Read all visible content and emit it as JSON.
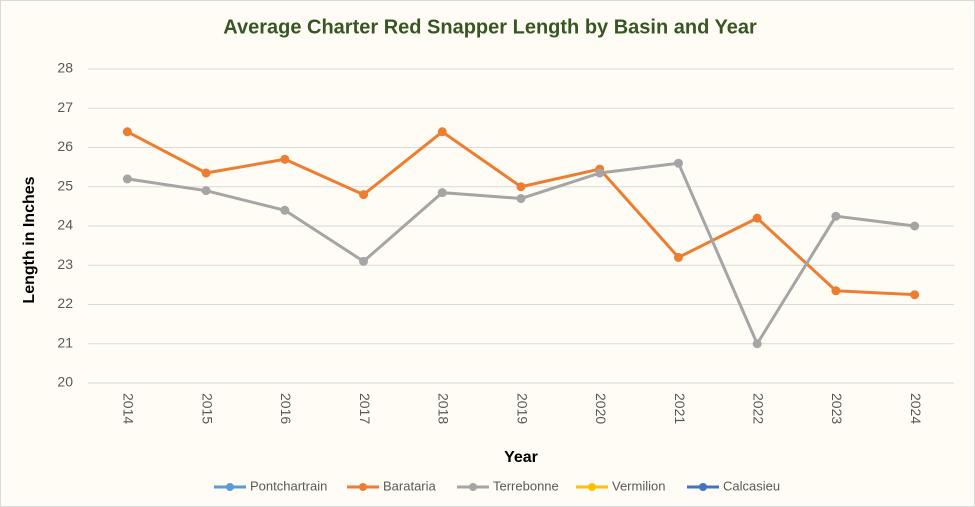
{
  "chart_data": {
    "type": "line",
    "title": "Average Charter Red Snapper Length by Basin and Year",
    "x_label": "Year",
    "y_label": "Length in Inches",
    "categories": [
      "2014",
      "2015",
      "2016",
      "2017",
      "2018",
      "2019",
      "2020",
      "2021",
      "2022",
      "2023",
      "2024"
    ],
    "series": [
      {
        "name": "Pontchartrain",
        "color": "#5b9bd5",
        "values": [
          null,
          null,
          null,
          null,
          null,
          null,
          null,
          null,
          null,
          null,
          null
        ]
      },
      {
        "name": "Barataria",
        "color": "#ed7d31",
        "values": [
          26.4,
          25.35,
          25.7,
          24.8,
          26.4,
          25.0,
          25.45,
          23.2,
          24.2,
          22.35,
          22.25
        ]
      },
      {
        "name": "Terrebonne",
        "color": "#a5a5a5",
        "values": [
          25.2,
          24.9,
          24.4,
          23.1,
          24.85,
          24.7,
          25.35,
          25.6,
          21.0,
          24.25,
          24.0
        ]
      },
      {
        "name": "Vermilion",
        "color": "#ffc000",
        "values": [
          null,
          null,
          null,
          null,
          null,
          null,
          null,
          null,
          null,
          null,
          null
        ]
      },
      {
        "name": "Calcasieu",
        "color": "#4472c4",
        "values": [
          null,
          null,
          null,
          null,
          null,
          null,
          null,
          null,
          null,
          null,
          null
        ]
      }
    ],
    "ylim": [
      20,
      28
    ],
    "yticks": [
      20,
      21,
      22,
      23,
      24,
      25,
      26,
      27,
      28
    ],
    "grid": true,
    "legend": "bottom"
  }
}
